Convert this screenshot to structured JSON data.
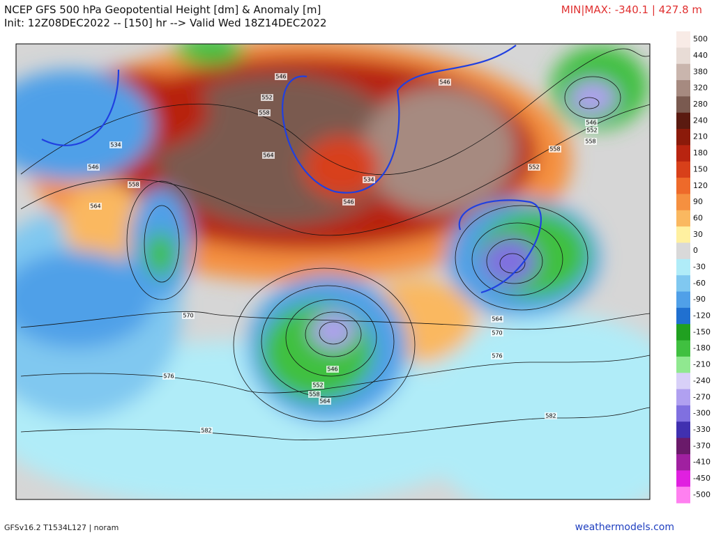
{
  "header": {
    "title": "NCEP GFS 500 hPa Geopotential Height [dm] & Anomaly [m]",
    "init": "Init: 12Z08DEC2022 -- [150] hr --> Valid Wed 18Z14DEC2022",
    "minmax": "MIN|MAX: -340.1 | 427.8 m"
  },
  "map": {
    "contour_labels": [
      546,
      552,
      558,
      534,
      546,
      558,
      564,
      564,
      534,
      546,
      546,
      546,
      552,
      558,
      558,
      552,
      570,
      576,
      582,
      546,
      552,
      558,
      564,
      564,
      570,
      576,
      582
    ]
  },
  "colorbar": {
    "labels": [
      500,
      440,
      380,
      320,
      280,
      240,
      210,
      180,
      150,
      120,
      90,
      60,
      30,
      0,
      -30,
      -60,
      -90,
      -120,
      -150,
      -180,
      -210,
      -240,
      -270,
      -300,
      -330,
      -370,
      -410,
      -450,
      -500
    ],
    "colors": [
      "#f8ebe6",
      "#e8dcd6",
      "#c9b5ad",
      "#a68a80",
      "#7a5a50",
      "#5a1a10",
      "#8b1a0a",
      "#b82410",
      "#d8401a",
      "#ee6a2a",
      "#f59040",
      "#fab860",
      "#fff0a0",
      "#d9d9d9",
      "#b0ecf8",
      "#80c8f0",
      "#50a0e8",
      "#2070d0",
      "#20a020",
      "#40c040",
      "#90e890",
      "#d8d0f8",
      "#b0a0f0",
      "#8070e0",
      "#4030b0",
      "#6a1a6a",
      "#a020a0",
      "#e020e0",
      "#ff80f0"
    ]
  },
  "footer": {
    "model": "GFSv16.2 T1534L127 | noram",
    "site": "weathermodels.com"
  }
}
